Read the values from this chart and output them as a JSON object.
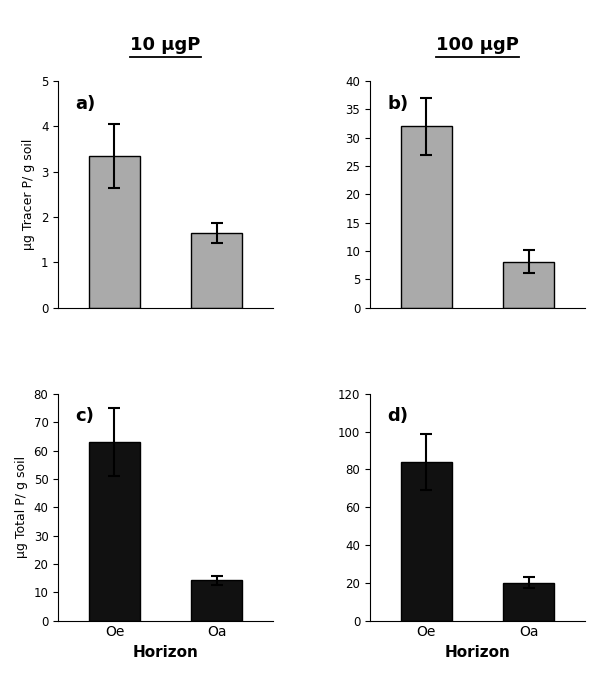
{
  "col_titles": [
    "10 μgP",
    "100 μgP"
  ],
  "panel_labels": [
    "a)",
    "b)",
    "c)",
    "d)"
  ],
  "categories": [
    "Oe",
    "Oa"
  ],
  "xlabel": "Horizon",
  "ylabel_top": "μg Tracer P/ g soil",
  "ylabel_bottom": "μg Total P/ g soil",
  "bar_color_top": "#aaaaaa",
  "bar_color_bottom": "#111111",
  "bar_edgecolor": "#000000",
  "values_a": [
    3.35,
    1.65
  ],
  "values_b": [
    32.0,
    8.1
  ],
  "values_c": [
    63.0,
    14.2
  ],
  "values_d": [
    84.0,
    20.0
  ],
  "errors_a": [
    0.7,
    0.22
  ],
  "errors_b": [
    5.0,
    2.0
  ],
  "errors_c": [
    12.0,
    1.5
  ],
  "errors_d": [
    15.0,
    3.0
  ],
  "ylim_a": [
    0,
    5
  ],
  "ylim_b": [
    0,
    40
  ],
  "ylim_c": [
    0,
    80
  ],
  "ylim_d": [
    0,
    120
  ],
  "yticks_a": [
    0,
    1,
    2,
    3,
    4,
    5
  ],
  "yticks_b": [
    0,
    5,
    10,
    15,
    20,
    25,
    30,
    35,
    40
  ],
  "yticks_c": [
    0,
    10,
    20,
    30,
    40,
    50,
    60,
    70,
    80
  ],
  "yticks_d": [
    0,
    20,
    40,
    60,
    80,
    100,
    120
  ],
  "background_color": "#ffffff",
  "fig_width": 6.0,
  "fig_height": 6.75,
  "dpi": 100
}
